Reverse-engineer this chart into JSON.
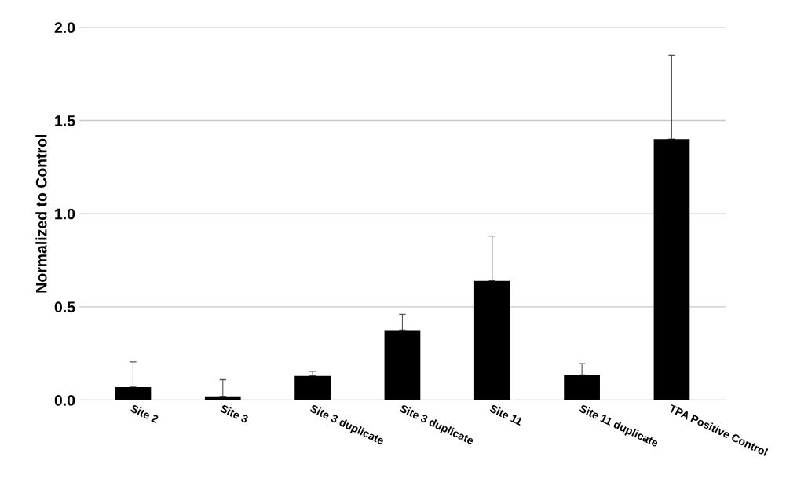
{
  "chart_data": {
    "type": "bar",
    "ylabel": "Normalized to Control",
    "categories": [
      "Site 2",
      "Site 3",
      "Site 3 duplicate",
      "Site 3 duplicate",
      "Site 11",
      "Site 11 duplicate",
      "TPA Positive Control"
    ],
    "values": [
      0.07,
      0.02,
      0.13,
      0.375,
      0.64,
      0.135,
      1.4
    ],
    "errors": [
      [
        0.07,
        0.205
      ],
      [
        0.02,
        0.11
      ],
      [
        0.13,
        0.155
      ],
      [
        0.375,
        0.46
      ],
      [
        0.64,
        0.88
      ],
      [
        0.135,
        0.195
      ],
      [
        1.4,
        1.85
      ]
    ],
    "color": "#000000",
    "ylim": [
      0,
      2.0
    ],
    "yticks": [
      {
        "value": 0,
        "label": "0.0"
      },
      {
        "value": 0.5,
        "label": "0.5"
      },
      {
        "value": 1.0,
        "label": "1.0"
      },
      {
        "value": 1.5,
        "label": "1.5"
      },
      {
        "value": 2.0,
        "label": "2.0"
      }
    ],
    "grid": "y"
  }
}
